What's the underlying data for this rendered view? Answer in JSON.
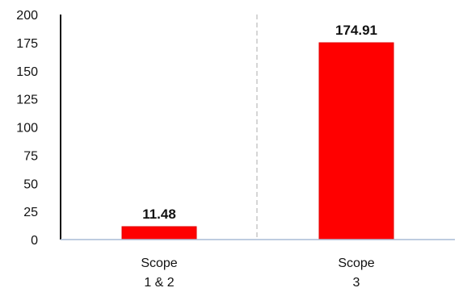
{
  "chart_data": {
    "type": "bar",
    "categories": [
      [
        "Scope",
        "1 & 2"
      ],
      [
        "Scope",
        "3"
      ]
    ],
    "values": [
      11.48,
      174.91
    ],
    "value_labels": [
      "11.48",
      "174.91"
    ],
    "ylim": [
      0,
      200
    ],
    "yticks": [
      0,
      25,
      50,
      75,
      100,
      125,
      150,
      175,
      200
    ],
    "title": "",
    "xlabel": "",
    "ylabel": "",
    "grid": false,
    "legend": "none",
    "colors": {
      "bar": "#ff0000",
      "bar_edge": "#e00000",
      "axis": "#111111",
      "baseline": "#a9bcd6",
      "divider": "#c8c8c8"
    }
  }
}
